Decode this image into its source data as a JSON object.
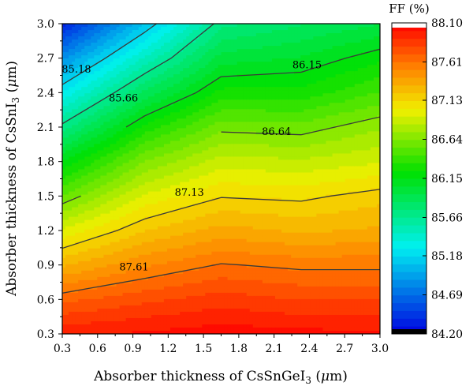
{
  "chart_data": {
    "type": "heatmap",
    "subtype": "filled-contour",
    "xlabel": {
      "prefix": "Absorber thickness of CsSnGeI",
      "sub": "3",
      "suffix": " (",
      "unit_italic": "μ",
      "unit_tail": "m)"
    },
    "ylabel": {
      "prefix": "Absorber thickness of CsSnI",
      "sub": "3",
      "suffix": " (",
      "unit_italic": "μ",
      "unit_tail": "m)"
    },
    "xlim": [
      0.3,
      3.0
    ],
    "ylim": [
      0.3,
      3.0
    ],
    "x_ticks": [
      "0.3",
      "0.6",
      "0.9",
      "1.2",
      "1.5",
      "1.8",
      "2.1",
      "2.4",
      "2.7",
      "3.0"
    ],
    "y_ticks": [
      "0.3",
      "0.6",
      "0.9",
      "1.2",
      "1.5",
      "1.8",
      "2.1",
      "2.4",
      "2.7",
      "3.0"
    ],
    "x_grid": [
      0.3,
      1.0,
      1.65,
      2.33,
      3.0
    ],
    "y_grid": [
      0.3,
      0.6,
      0.9,
      1.2,
      1.5,
      1.8,
      2.1,
      2.4,
      2.7,
      3.0
    ],
    "z": [
      [
        87.98,
        88.02,
        88.06,
        88.04,
        88.02
      ],
      [
        87.68,
        87.78,
        87.86,
        87.8,
        87.8
      ],
      [
        87.3,
        87.5,
        87.62,
        87.58,
        87.58
      ],
      [
        86.95,
        87.22,
        87.36,
        87.3,
        87.34
      ],
      [
        86.55,
        86.95,
        87.12,
        87.1,
        87.18
      ],
      [
        86.15,
        86.64,
        86.88,
        86.85,
        86.92
      ],
      [
        85.7,
        86.28,
        86.6,
        86.58,
        86.72
      ],
      [
        85.28,
        85.88,
        86.28,
        86.28,
        86.45
      ],
      [
        84.85,
        85.48,
        86.0,
        86.06,
        86.22
      ],
      [
        84.35,
        85.08,
        85.72,
        85.85,
        85.95
      ]
    ],
    "contour_levels": [
      85.18,
      85.66,
      86.15,
      86.64,
      87.13,
      87.61
    ],
    "contour_labels": [
      {
        "text": "85.18",
        "x": 0.42,
        "y": 2.6
      },
      {
        "text": "85.66",
        "x": 0.82,
        "y": 2.35
      },
      {
        "text": "86.15",
        "x": 2.38,
        "y": 2.64
      },
      {
        "text": "86.64",
        "x": 2.12,
        "y": 2.06
      },
      {
        "text": "87.13",
        "x": 1.38,
        "y": 1.53
      },
      {
        "text": "87.61",
        "x": 0.91,
        "y": 0.88
      }
    ],
    "colorbar": {
      "title": "FF (%)",
      "range": [
        84.2,
        88.1
      ],
      "tick_labels": [
        "88.10",
        "87.61",
        "87.13",
        "86.64",
        "86.15",
        "85.66",
        "85.18",
        "84.69",
        "84.20"
      ],
      "tick_values": [
        88.1,
        87.61,
        87.13,
        86.64,
        86.15,
        85.66,
        85.18,
        84.69,
        84.2
      ]
    },
    "colors": {
      "low": "#0000e0",
      "cyan": "#00f0f0",
      "green": "#00e000",
      "yellow": "#f0f000",
      "orange": "#ff8000",
      "high": "#ff0000",
      "contour": "#3a3a3a"
    }
  }
}
